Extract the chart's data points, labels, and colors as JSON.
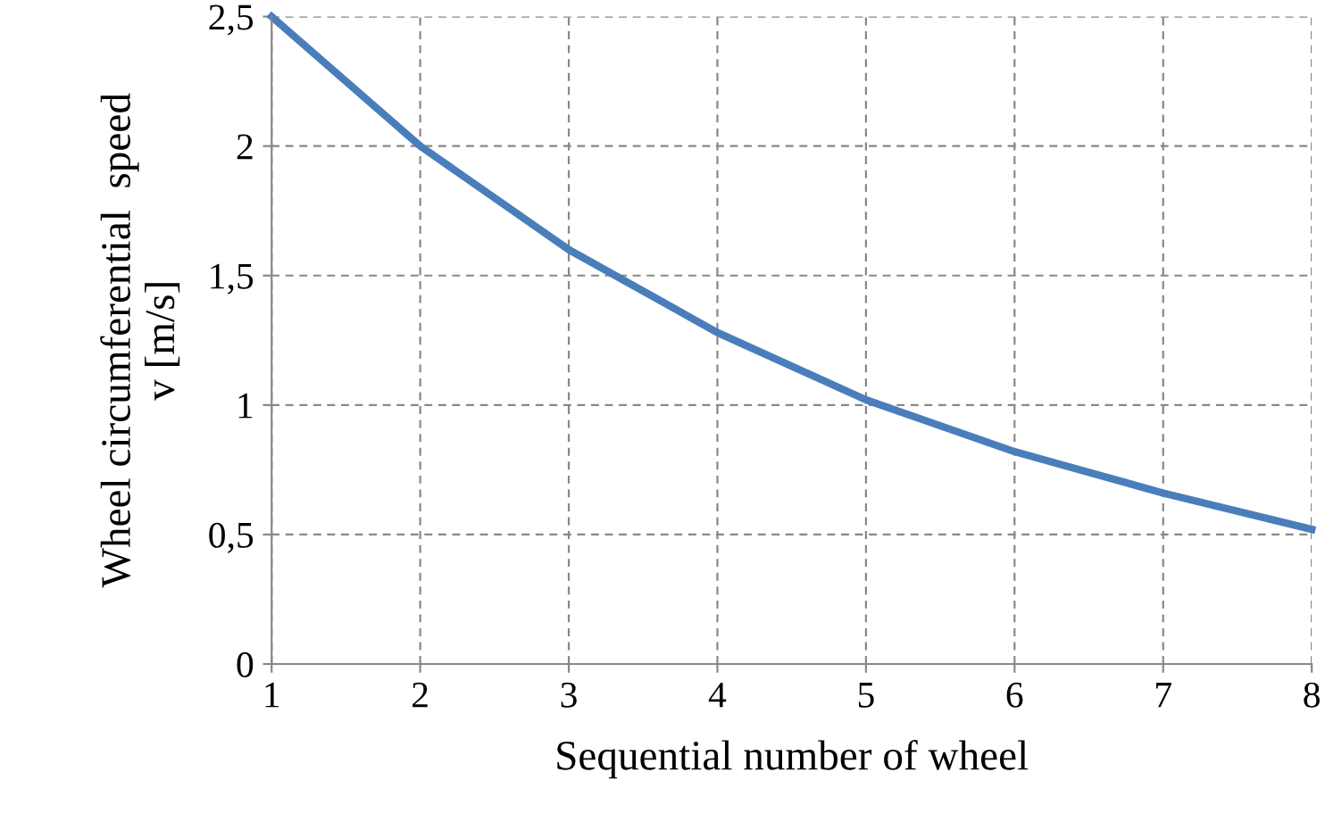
{
  "chart_data": {
    "type": "line",
    "xlabel": "Sequential number of wheel",
    "ylabel": "Wheel circumferential  speed\nv [m/s]",
    "x": [
      1,
      2,
      3,
      4,
      5,
      6,
      7,
      8
    ],
    "series": [
      {
        "color": "#4a7ebb",
        "values": [
          2.5,
          2.0,
          1.6,
          1.28,
          1.02,
          0.82,
          0.66,
          0.52
        ]
      }
    ],
    "xlim": [
      1,
      8
    ],
    "xticks": [
      1,
      2,
      3,
      4,
      5,
      6,
      7,
      8
    ],
    "ylim": [
      0,
      2.5
    ],
    "yticks": [
      0,
      {
        "value": 0.5,
        "label": "0,5"
      },
      1,
      {
        "value": 1.5,
        "label": "1,5"
      },
      2,
      {
        "value": 2.5,
        "label": "2,5"
      }
    ],
    "grid": true,
    "marker": "none",
    "line_style": "solid"
  }
}
